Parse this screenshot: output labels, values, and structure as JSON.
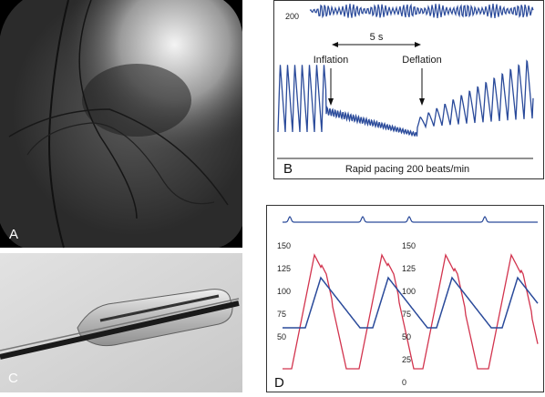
{
  "panels": {
    "a": {
      "label": "A"
    },
    "b": {
      "label": "B",
      "rate_label": "200",
      "interval": "5 s",
      "inflation": "Inflation",
      "deflation": "Deflation",
      "caption": "Rapid pacing 200 beats/min"
    },
    "c": {
      "label": "C"
    },
    "d": {
      "label": "D",
      "left_scale": [
        150,
        125,
        100,
        75,
        50
      ],
      "right_scale": [
        150,
        125,
        100,
        75,
        50,
        25,
        0
      ]
    }
  }
}
